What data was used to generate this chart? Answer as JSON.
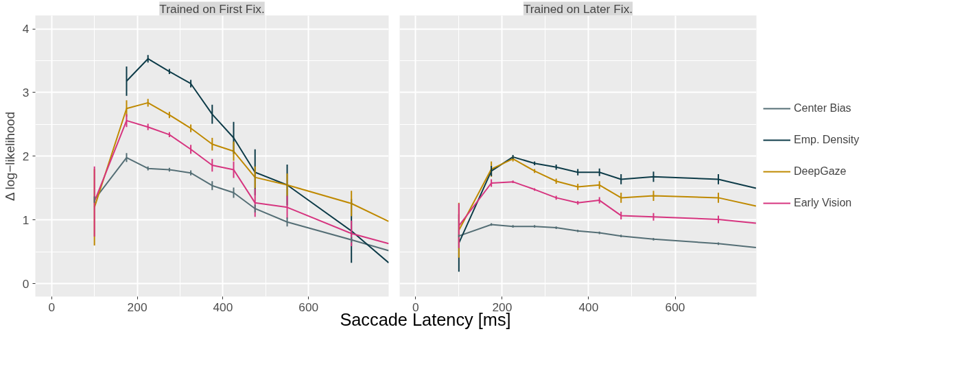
{
  "chart_data": [
    {
      "type": "line",
      "title": "Trained on First Fix.",
      "xlabel": "Saccade Latency [ms]",
      "ylabel": "Δ log−likelihood",
      "x": [
        100,
        175,
        225,
        275,
        325,
        375,
        425,
        475,
        550,
        700,
        787
      ],
      "xlim": [
        -38,
        787
      ],
      "ylim": [
        -0.2,
        4.21
      ],
      "xticks": [
        0,
        200,
        400,
        600
      ],
      "yticks": [
        0,
        1,
        2,
        3,
        4
      ],
      "grid": true,
      "series": [
        {
          "color": "#546e75",
          "values": [
            1.32,
            1.98,
            1.81,
            1.79,
            1.74,
            1.54,
            1.43,
            1.18,
            0.97,
            0.69,
            0.52
          ],
          "errors": [
            0.05,
            0.07,
            0.03,
            0.03,
            0.04,
            0.07,
            0.08,
            0.06,
            0.07,
            0.04,
            null
          ]
        },
        {
          "color": "#0d3b48",
          "values": [
            null,
            3.18,
            3.53,
            3.33,
            3.14,
            2.66,
            2.29,
            1.75,
            1.55,
            0.83,
            0.33
          ],
          "errors": [
            null,
            0.23,
            0.06,
            0.04,
            0.06,
            0.15,
            0.25,
            0.36,
            0.32,
            0.5,
            null
          ]
        },
        {
          "color": "#bf8900",
          "values": [
            1.2,
            2.75,
            2.84,
            2.65,
            2.44,
            2.19,
            2.08,
            1.67,
            1.55,
            1.26,
            0.98
          ],
          "errors": [
            0.6,
            0.13,
            0.06,
            0.05,
            0.06,
            0.1,
            0.15,
            0.17,
            0.18,
            0.2,
            null
          ]
        },
        {
          "color": "#d6347f",
          "values": [
            1.29,
            2.56,
            2.46,
            2.34,
            2.11,
            1.86,
            1.79,
            1.27,
            1.2,
            0.79,
            0.63
          ],
          "errors": [
            0.55,
            0.1,
            0.05,
            0.04,
            0.07,
            0.1,
            0.13,
            0.22,
            0.18,
            0.2,
            null
          ]
        }
      ]
    },
    {
      "type": "line",
      "title": "Trained on Later Fix.",
      "x": [
        100,
        175,
        225,
        275,
        325,
        375,
        425,
        475,
        550,
        700,
        787
      ],
      "xlim": [
        -37,
        788
      ],
      "ylim": [
        -0.2,
        4.21
      ],
      "xticks": [
        0,
        200,
        400,
        600
      ],
      "yticks": [
        0,
        1,
        2,
        3,
        4
      ],
      "grid": true,
      "tick_labels": "x",
      "legend": "right",
      "series": [
        {
          "name": "Center Bias",
          "color": "#546e75",
          "values": [
            0.75,
            0.93,
            0.9,
            0.9,
            0.88,
            0.83,
            0.8,
            0.75,
            0.7,
            0.63,
            0.57
          ],
          "errors": [
            0.02,
            0.02,
            0.02,
            0.02,
            0.02,
            0.02,
            0.02,
            0.02,
            0.02,
            0.02,
            null
          ]
        },
        {
          "name": "Emp. Density",
          "color": "#0d3b48",
          "values": [
            0.64,
            1.77,
            1.99,
            1.89,
            1.83,
            1.75,
            1.75,
            1.64,
            1.68,
            1.64,
            1.5
          ],
          "errors": [
            0.45,
            0.08,
            0.03,
            0.03,
            0.04,
            0.05,
            0.06,
            0.08,
            0.08,
            0.08,
            null
          ]
        },
        {
          "name": "DeepGaze",
          "color": "#bf8900",
          "values": [
            0.84,
            1.8,
            1.96,
            1.77,
            1.61,
            1.52,
            1.55,
            1.35,
            1.38,
            1.35,
            1.22
          ],
          "errors": [
            0.43,
            0.12,
            0.04,
            0.03,
            0.04,
            0.05,
            0.06,
            0.08,
            0.08,
            0.08,
            null
          ]
        },
        {
          "name": "Early Vision",
          "color": "#d6347f",
          "values": [
            0.91,
            1.58,
            1.6,
            1.48,
            1.35,
            1.27,
            1.31,
            1.07,
            1.05,
            1.01,
            0.95
          ],
          "errors": [
            0.35,
            0.06,
            0.02,
            0.02,
            0.03,
            0.03,
            0.05,
            0.06,
            0.06,
            0.06,
            null
          ]
        }
      ]
    }
  ]
}
